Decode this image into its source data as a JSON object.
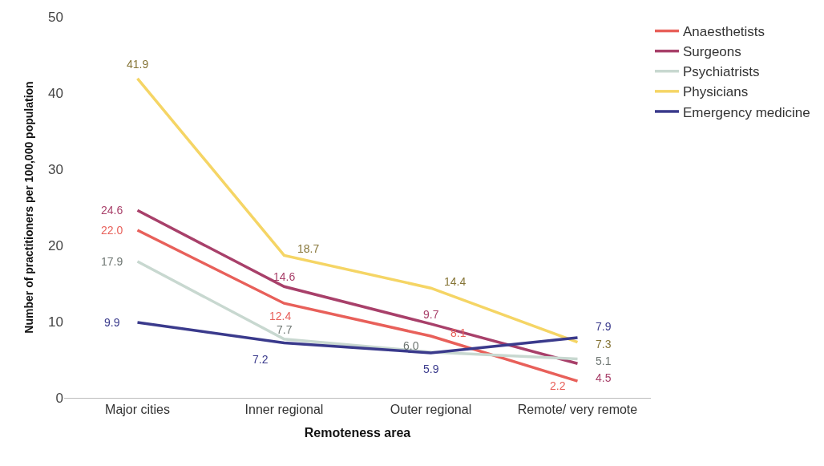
{
  "chart_data": {
    "type": "line",
    "xlabel": "Remoteness area",
    "ylabel": "Number of practitioners per 100,000 population",
    "categories": [
      "Major cities",
      "Inner regional",
      "Outer regional",
      "Remote/ very remote"
    ],
    "ylim": [
      0,
      50
    ],
    "yticks": [
      0,
      10,
      20,
      30,
      40,
      50
    ],
    "legend": "top right",
    "marker": "none",
    "line_style": "solid",
    "series": [
      {
        "name": "Anaesthetists",
        "color": "#e8605a",
        "values": [
          22.0,
          12.4,
          8.1,
          2.2
        ],
        "value_labels": [
          "22.0",
          "12.4",
          "8.1",
          "2.2"
        ]
      },
      {
        "name": "Surgeons",
        "color": "#a8406a",
        "values": [
          24.6,
          14.6,
          9.7,
          4.5
        ],
        "value_labels": [
          "24.6",
          "14.6",
          "9.7",
          "4.5"
        ]
      },
      {
        "name": "Psychiatrists",
        "color": "#c8d8d0",
        "values": [
          17.9,
          7.7,
          6.0,
          5.1
        ],
        "value_labels": [
          "17.9",
          "7.7",
          "6.0",
          "5.1"
        ]
      },
      {
        "name": "Physicians",
        "color": "#f5d565",
        "values": [
          41.9,
          18.7,
          14.4,
          7.3
        ],
        "value_labels": [
          "41.9",
          "18.7",
          "14.4",
          "7.3"
        ]
      },
      {
        "name": "Emergency medicine",
        "color": "#3a3a8c",
        "values": [
          9.9,
          7.2,
          5.9,
          7.9
        ],
        "value_labels": [
          "9.9",
          "7.2",
          "5.9",
          "7.9"
        ]
      }
    ]
  }
}
